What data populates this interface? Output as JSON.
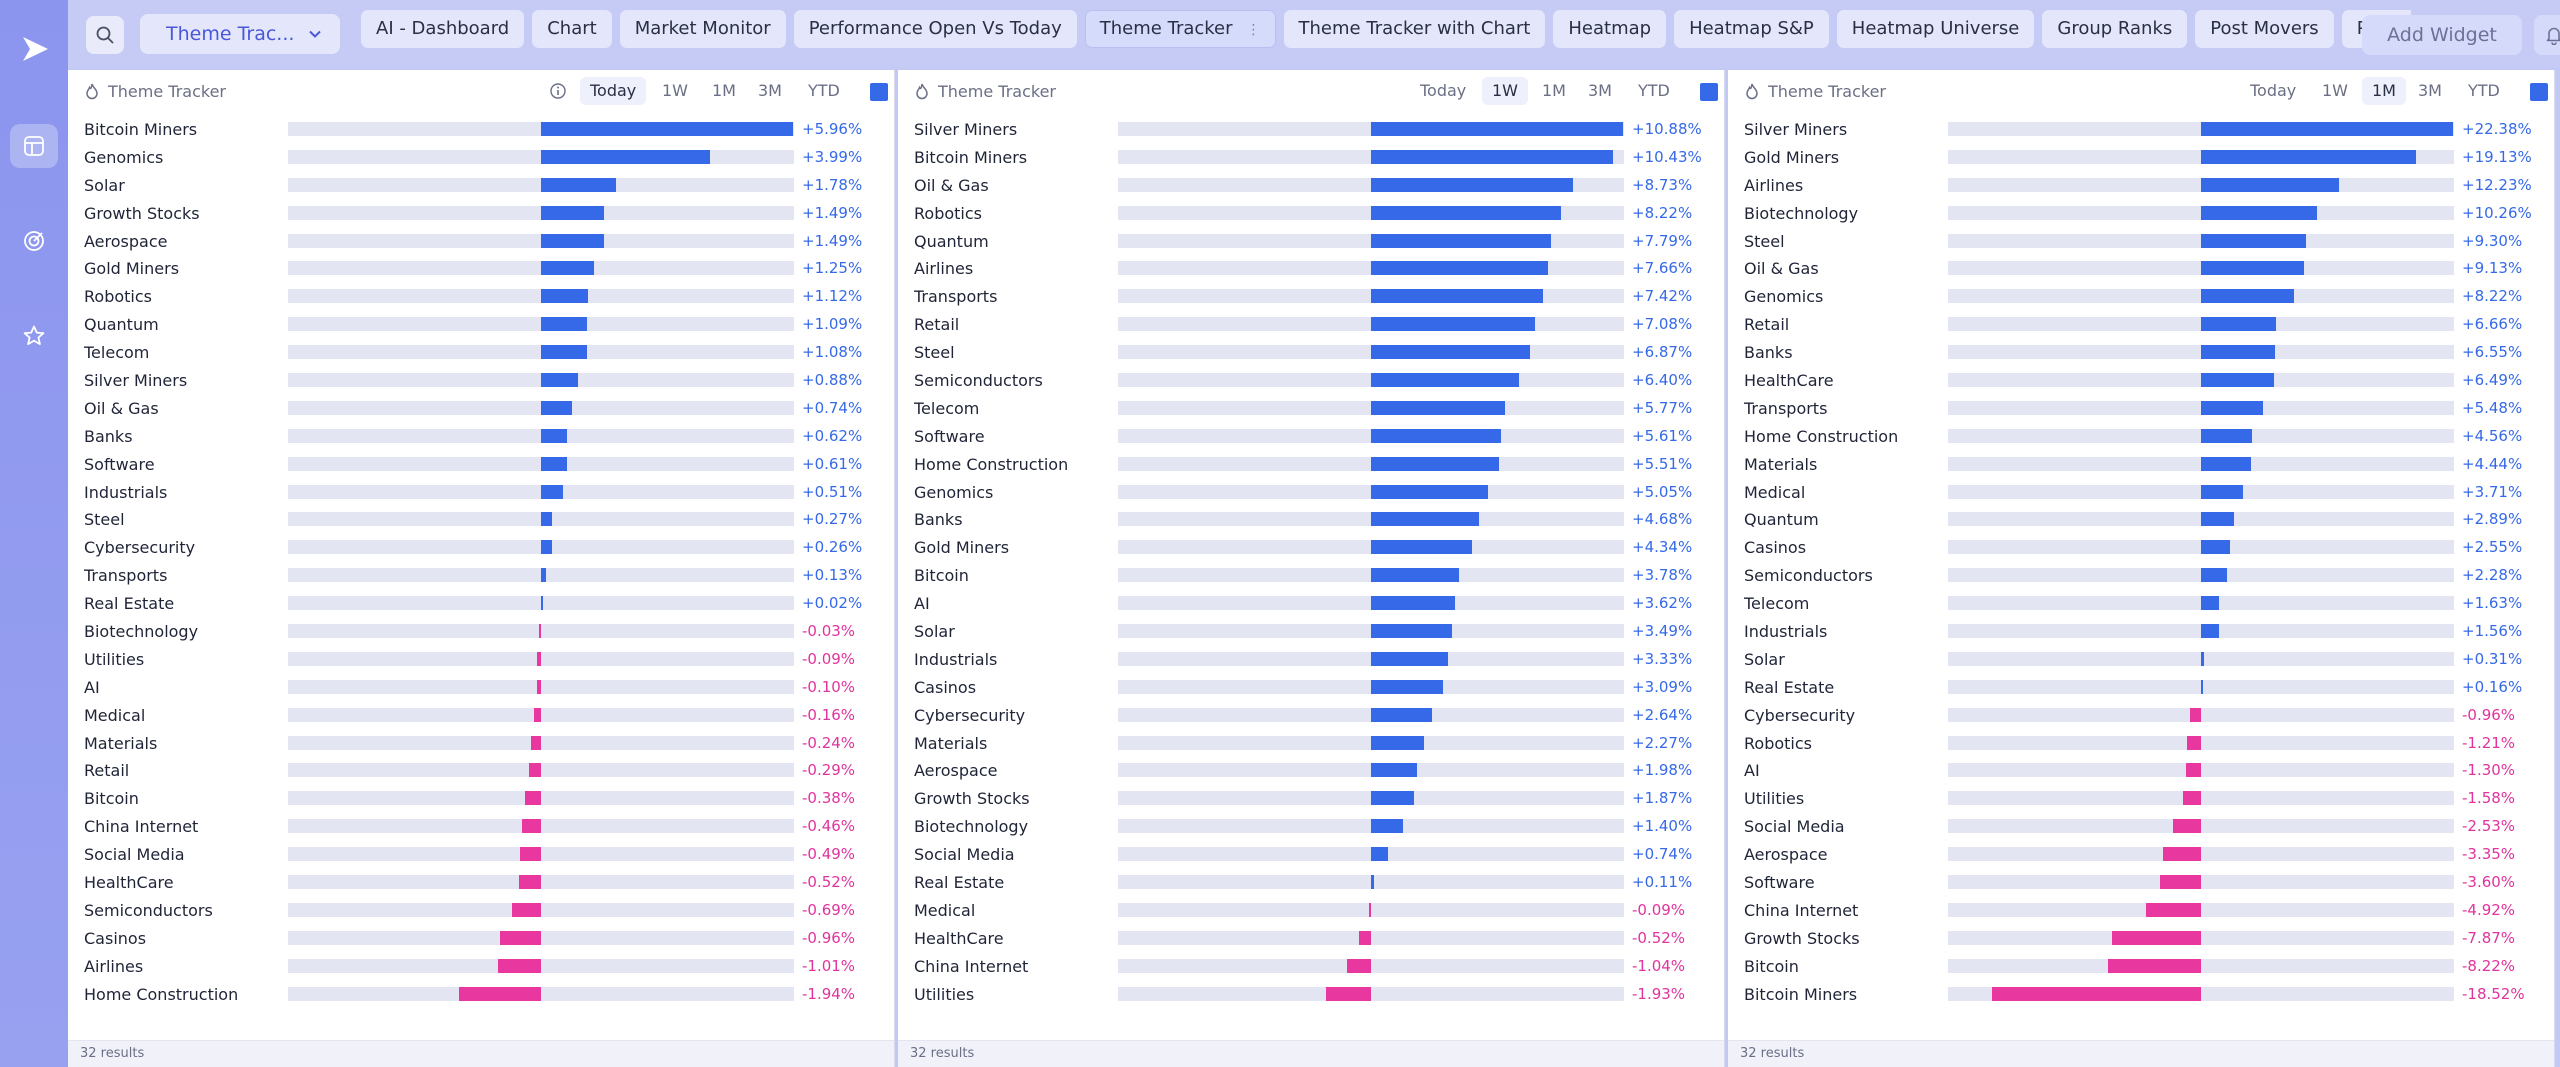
{
  "app": {
    "dashboard_select": "Theme Trac...",
    "add_widget": "Add Widget",
    "accent": "#3569e8",
    "negative": "#e8389f"
  },
  "tabs": [
    {
      "label": "AI - Dashboard",
      "active": false
    },
    {
      "label": "Chart",
      "active": false
    },
    {
      "label": "Market Monitor",
      "active": false
    },
    {
      "label": "Performance Open Vs Today",
      "active": false
    },
    {
      "label": "Theme Tracker",
      "active": true
    },
    {
      "label": "Theme Tracker with Chart",
      "active": false
    },
    {
      "label": "Heatmap",
      "active": false
    },
    {
      "label": "Heatmap S&P",
      "active": false
    },
    {
      "label": "Heatmap Universe",
      "active": false
    },
    {
      "label": "Group Ranks",
      "active": false
    },
    {
      "label": "Post Movers",
      "active": false
    },
    {
      "label": "Pre Mov",
      "active": false
    }
  ],
  "panels": [
    {
      "title": "Theme Tracker",
      "timeframes": [
        "Today",
        "1W",
        "1M",
        "3M",
        "YTD"
      ],
      "active_timeframe": "Today",
      "show_info": true,
      "footer": "32 results",
      "rows": [
        {
          "name": "Bitcoin Miners",
          "value": 5.96,
          "label": "+5.96%"
        },
        {
          "name": "Genomics",
          "value": 3.99,
          "label": "+3.99%"
        },
        {
          "name": "Solar",
          "value": 1.78,
          "label": "+1.78%"
        },
        {
          "name": "Growth Stocks",
          "value": 1.49,
          "label": "+1.49%"
        },
        {
          "name": "Aerospace",
          "value": 1.49,
          "label": "+1.49%"
        },
        {
          "name": "Gold Miners",
          "value": 1.25,
          "label": "+1.25%"
        },
        {
          "name": "Robotics",
          "value": 1.12,
          "label": "+1.12%"
        },
        {
          "name": "Quantum",
          "value": 1.09,
          "label": "+1.09%"
        },
        {
          "name": "Telecom",
          "value": 1.08,
          "label": "+1.08%"
        },
        {
          "name": "Silver Miners",
          "value": 0.88,
          "label": "+0.88%"
        },
        {
          "name": "Oil & Gas",
          "value": 0.74,
          "label": "+0.74%"
        },
        {
          "name": "Banks",
          "value": 0.62,
          "label": "+0.62%"
        },
        {
          "name": "Software",
          "value": 0.61,
          "label": "+0.61%"
        },
        {
          "name": "Industrials",
          "value": 0.51,
          "label": "+0.51%"
        },
        {
          "name": "Steel",
          "value": 0.27,
          "label": "+0.27%"
        },
        {
          "name": "Cybersecurity",
          "value": 0.26,
          "label": "+0.26%"
        },
        {
          "name": "Transports",
          "value": 0.13,
          "label": "+0.13%"
        },
        {
          "name": "Real Estate",
          "value": 0.02,
          "label": "+0.02%"
        },
        {
          "name": "Biotechnology",
          "value": -0.03,
          "label": "-0.03%"
        },
        {
          "name": "Utilities",
          "value": -0.09,
          "label": "-0.09%"
        },
        {
          "name": "AI",
          "value": -0.1,
          "label": "-0.10%"
        },
        {
          "name": "Medical",
          "value": -0.16,
          "label": "-0.16%"
        },
        {
          "name": "Materials",
          "value": -0.24,
          "label": "-0.24%"
        },
        {
          "name": "Retail",
          "value": -0.29,
          "label": "-0.29%"
        },
        {
          "name": "Bitcoin",
          "value": -0.38,
          "label": "-0.38%"
        },
        {
          "name": "China Internet",
          "value": -0.46,
          "label": "-0.46%"
        },
        {
          "name": "Social Media",
          "value": -0.49,
          "label": "-0.49%"
        },
        {
          "name": "HealthCare",
          "value": -0.52,
          "label": "-0.52%"
        },
        {
          "name": "Semiconductors",
          "value": -0.69,
          "label": "-0.69%"
        },
        {
          "name": "Casinos",
          "value": -0.96,
          "label": "-0.96%"
        },
        {
          "name": "Airlines",
          "value": -1.01,
          "label": "-1.01%"
        },
        {
          "name": "Home Construction",
          "value": -1.94,
          "label": "-1.94%"
        }
      ]
    },
    {
      "title": "Theme Tracker",
      "timeframes": [
        "Today",
        "1W",
        "1M",
        "3M",
        "YTD"
      ],
      "active_timeframe": "1W",
      "show_info": false,
      "footer": "32 results",
      "rows": [
        {
          "name": "Silver Miners",
          "value": 10.88,
          "label": "+10.88%"
        },
        {
          "name": "Bitcoin Miners",
          "value": 10.43,
          "label": "+10.43%"
        },
        {
          "name": "Oil & Gas",
          "value": 8.73,
          "label": "+8.73%"
        },
        {
          "name": "Robotics",
          "value": 8.22,
          "label": "+8.22%"
        },
        {
          "name": "Quantum",
          "value": 7.79,
          "label": "+7.79%"
        },
        {
          "name": "Airlines",
          "value": 7.66,
          "label": "+7.66%"
        },
        {
          "name": "Transports",
          "value": 7.42,
          "label": "+7.42%"
        },
        {
          "name": "Retail",
          "value": 7.08,
          "label": "+7.08%"
        },
        {
          "name": "Steel",
          "value": 6.87,
          "label": "+6.87%"
        },
        {
          "name": "Semiconductors",
          "value": 6.4,
          "label": "+6.40%"
        },
        {
          "name": "Telecom",
          "value": 5.77,
          "label": "+5.77%"
        },
        {
          "name": "Software",
          "value": 5.61,
          "label": "+5.61%"
        },
        {
          "name": "Home Construction",
          "value": 5.51,
          "label": "+5.51%"
        },
        {
          "name": "Genomics",
          "value": 5.05,
          "label": "+5.05%"
        },
        {
          "name": "Banks",
          "value": 4.68,
          "label": "+4.68%"
        },
        {
          "name": "Gold Miners",
          "value": 4.34,
          "label": "+4.34%"
        },
        {
          "name": "Bitcoin",
          "value": 3.78,
          "label": "+3.78%"
        },
        {
          "name": "AI",
          "value": 3.62,
          "label": "+3.62%"
        },
        {
          "name": "Solar",
          "value": 3.49,
          "label": "+3.49%"
        },
        {
          "name": "Industrials",
          "value": 3.33,
          "label": "+3.33%"
        },
        {
          "name": "Casinos",
          "value": 3.09,
          "label": "+3.09%"
        },
        {
          "name": "Cybersecurity",
          "value": 2.64,
          "label": "+2.64%"
        },
        {
          "name": "Materials",
          "value": 2.27,
          "label": "+2.27%"
        },
        {
          "name": "Aerospace",
          "value": 1.98,
          "label": "+1.98%"
        },
        {
          "name": "Growth Stocks",
          "value": 1.87,
          "label": "+1.87%"
        },
        {
          "name": "Biotechnology",
          "value": 1.4,
          "label": "+1.40%"
        },
        {
          "name": "Social Media",
          "value": 0.74,
          "label": "+0.74%"
        },
        {
          "name": "Real Estate",
          "value": 0.11,
          "label": "+0.11%"
        },
        {
          "name": "Medical",
          "value": -0.09,
          "label": "-0.09%"
        },
        {
          "name": "HealthCare",
          "value": -0.52,
          "label": "-0.52%"
        },
        {
          "name": "China Internet",
          "value": -1.04,
          "label": "-1.04%"
        },
        {
          "name": "Utilities",
          "value": -1.93,
          "label": "-1.93%"
        }
      ]
    },
    {
      "title": "Theme Tracker",
      "timeframes": [
        "Today",
        "1W",
        "1M",
        "3M",
        "YTD"
      ],
      "active_timeframe": "1M",
      "show_info": false,
      "footer": "32 results",
      "rows": [
        {
          "name": "Silver Miners",
          "value": 22.38,
          "label": "+22.38%"
        },
        {
          "name": "Gold Miners",
          "value": 19.13,
          "label": "+19.13%"
        },
        {
          "name": "Airlines",
          "value": 12.23,
          "label": "+12.23%"
        },
        {
          "name": "Biotechnology",
          "value": 10.26,
          "label": "+10.26%"
        },
        {
          "name": "Steel",
          "value": 9.3,
          "label": "+9.30%"
        },
        {
          "name": "Oil & Gas",
          "value": 9.13,
          "label": "+9.13%"
        },
        {
          "name": "Genomics",
          "value": 8.22,
          "label": "+8.22%"
        },
        {
          "name": "Retail",
          "value": 6.66,
          "label": "+6.66%"
        },
        {
          "name": "Banks",
          "value": 6.55,
          "label": "+6.55%"
        },
        {
          "name": "HealthCare",
          "value": 6.49,
          "label": "+6.49%"
        },
        {
          "name": "Transports",
          "value": 5.48,
          "label": "+5.48%"
        },
        {
          "name": "Home Construction",
          "value": 4.56,
          "label": "+4.56%"
        },
        {
          "name": "Materials",
          "value": 4.44,
          "label": "+4.44%"
        },
        {
          "name": "Medical",
          "value": 3.71,
          "label": "+3.71%"
        },
        {
          "name": "Quantum",
          "value": 2.89,
          "label": "+2.89%"
        },
        {
          "name": "Casinos",
          "value": 2.55,
          "label": "+2.55%"
        },
        {
          "name": "Semiconductors",
          "value": 2.28,
          "label": "+2.28%"
        },
        {
          "name": "Telecom",
          "value": 1.63,
          "label": "+1.63%"
        },
        {
          "name": "Industrials",
          "value": 1.56,
          "label": "+1.56%"
        },
        {
          "name": "Solar",
          "value": 0.31,
          "label": "+0.31%"
        },
        {
          "name": "Real Estate",
          "value": 0.16,
          "label": "+0.16%"
        },
        {
          "name": "Cybersecurity",
          "value": -0.96,
          "label": "-0.96%"
        },
        {
          "name": "Robotics",
          "value": -1.21,
          "label": "-1.21%"
        },
        {
          "name": "AI",
          "value": -1.3,
          "label": "-1.30%"
        },
        {
          "name": "Utilities",
          "value": -1.58,
          "label": "-1.58%"
        },
        {
          "name": "Social Media",
          "value": -2.53,
          "label": "-2.53%"
        },
        {
          "name": "Aerospace",
          "value": -3.35,
          "label": "-3.35%"
        },
        {
          "name": "Software",
          "value": -3.6,
          "label": "-3.60%"
        },
        {
          "name": "China Internet",
          "value": -4.92,
          "label": "-4.92%"
        },
        {
          "name": "Growth Stocks",
          "value": -7.87,
          "label": "-7.87%"
        },
        {
          "name": "Bitcoin",
          "value": -8.22,
          "label": "-8.22%"
        },
        {
          "name": "Bitcoin Miners",
          "value": -18.52,
          "label": "-18.52%"
        }
      ]
    }
  ]
}
